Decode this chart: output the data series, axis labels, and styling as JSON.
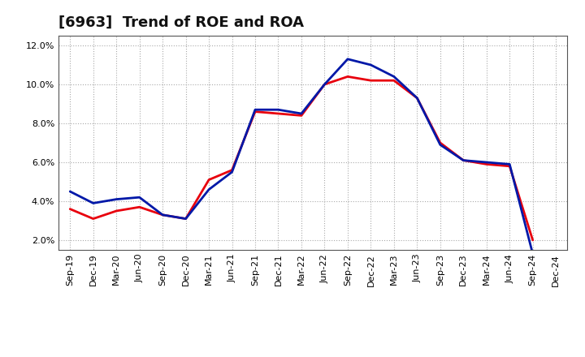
{
  "title": "[6963]  Trend of ROE and ROA",
  "labels": [
    "Sep-19",
    "Dec-19",
    "Mar-20",
    "Jun-20",
    "Sep-20",
    "Dec-20",
    "Mar-21",
    "Jun-21",
    "Sep-21",
    "Dec-21",
    "Mar-22",
    "Jun-22",
    "Sep-22",
    "Dec-22",
    "Mar-23",
    "Jun-23",
    "Sep-23",
    "Dec-23",
    "Mar-24",
    "Jun-24",
    "Sep-24",
    "Dec-24"
  ],
  "ROE": [
    3.6,
    3.1,
    3.5,
    3.7,
    3.3,
    3.1,
    5.1,
    5.6,
    8.6,
    8.5,
    8.4,
    10.0,
    10.4,
    10.2,
    10.2,
    9.3,
    7.0,
    6.1,
    5.9,
    5.8,
    2.0,
    null
  ],
  "ROA": [
    4.5,
    3.9,
    4.1,
    4.2,
    3.3,
    3.1,
    4.6,
    5.5,
    8.7,
    8.7,
    8.5,
    10.0,
    11.3,
    11.0,
    10.4,
    9.3,
    6.9,
    6.1,
    6.0,
    5.9,
    1.3,
    null
  ],
  "ROE_color": "#e8000d",
  "ROA_color": "#0018a8",
  "background_color": "#ffffff",
  "plot_bg_color": "#ffffff",
  "grid_color": "#aaaaaa",
  "ylim": [
    1.5,
    12.5
  ],
  "yticks": [
    2.0,
    4.0,
    6.0,
    8.0,
    10.0,
    12.0
  ],
  "line_width": 2.0,
  "title_fontsize": 13,
  "tick_fontsize": 8,
  "legend_fontsize": 10
}
